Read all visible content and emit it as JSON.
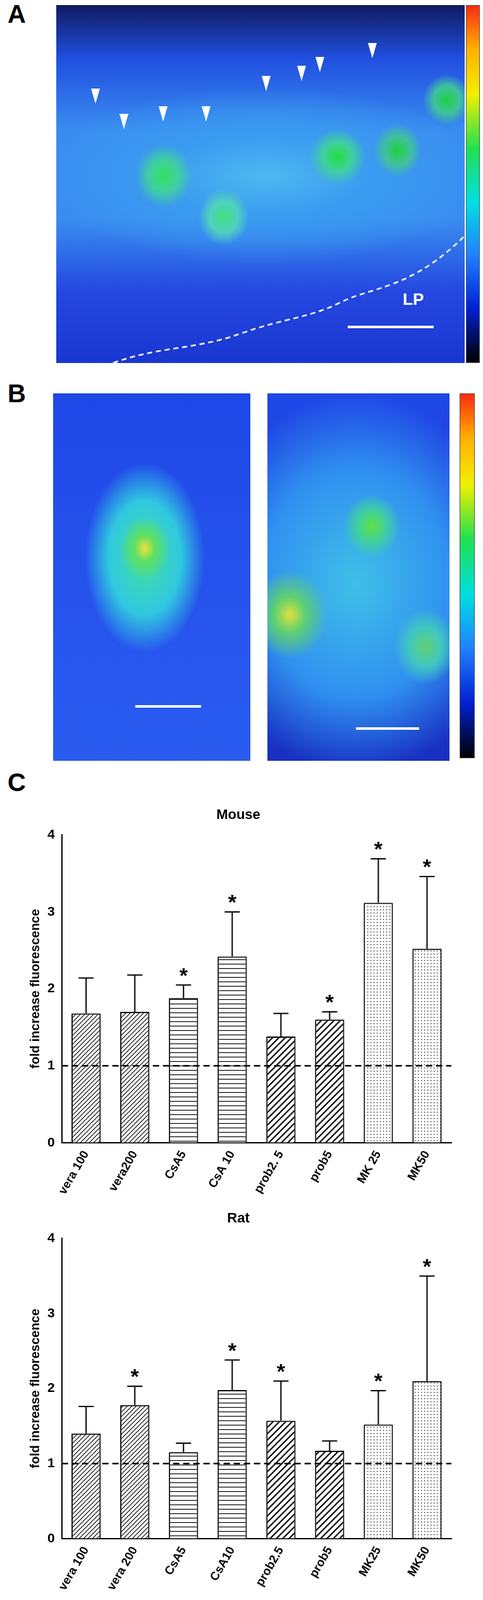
{
  "panel_labels": [
    "A",
    "B",
    "C"
  ],
  "annotations": [
    "LP"
  ],
  "chart_data": [
    {
      "type": "bar",
      "title": "Mouse",
      "y_label": "fold increase fluorescence",
      "categories": [
        "vera 100",
        "vera200",
        "CsA5",
        "CsA 10",
        "prob2. 5",
        "prob5",
        "MK 25",
        "MK50"
      ],
      "values": [
        1.68,
        1.7,
        1.88,
        2.42,
        1.38,
        1.6,
        3.12,
        2.52
      ],
      "errors": [
        0.46,
        0.48,
        0.17,
        0.58,
        0.3,
        0.1,
        0.57,
        0.94
      ],
      "significant": [
        false,
        false,
        true,
        true,
        false,
        true,
        true,
        true
      ],
      "significance_label": "*",
      "reference_line": 1,
      "color": "#ffffff",
      "grid": false,
      "ylim": [
        0,
        4
      ],
      "yticks": [
        0,
        1,
        2,
        3,
        4
      ]
    },
    {
      "type": "bar",
      "title": "Rat",
      "y_label": "fold increase fluorescence",
      "categories": [
        "vera 100",
        "vera 200",
        "CsA5",
        "CsA10",
        "prob2.5",
        "prob5",
        "MK25",
        "MK50"
      ],
      "values": [
        1.4,
        1.78,
        1.15,
        1.98,
        1.57,
        1.17,
        1.52,
        2.1
      ],
      "errors": [
        0.36,
        0.25,
        0.12,
        0.4,
        0.53,
        0.13,
        0.45,
        1.4
      ],
      "significant": [
        false,
        true,
        false,
        true,
        true,
        false,
        true,
        true
      ],
      "significance_label": "*",
      "reference_line": 1,
      "color": "#ffffff",
      "grid": false,
      "ylim": [
        0,
        4
      ],
      "yticks": [
        0,
        1,
        2,
        3,
        4
      ]
    }
  ]
}
